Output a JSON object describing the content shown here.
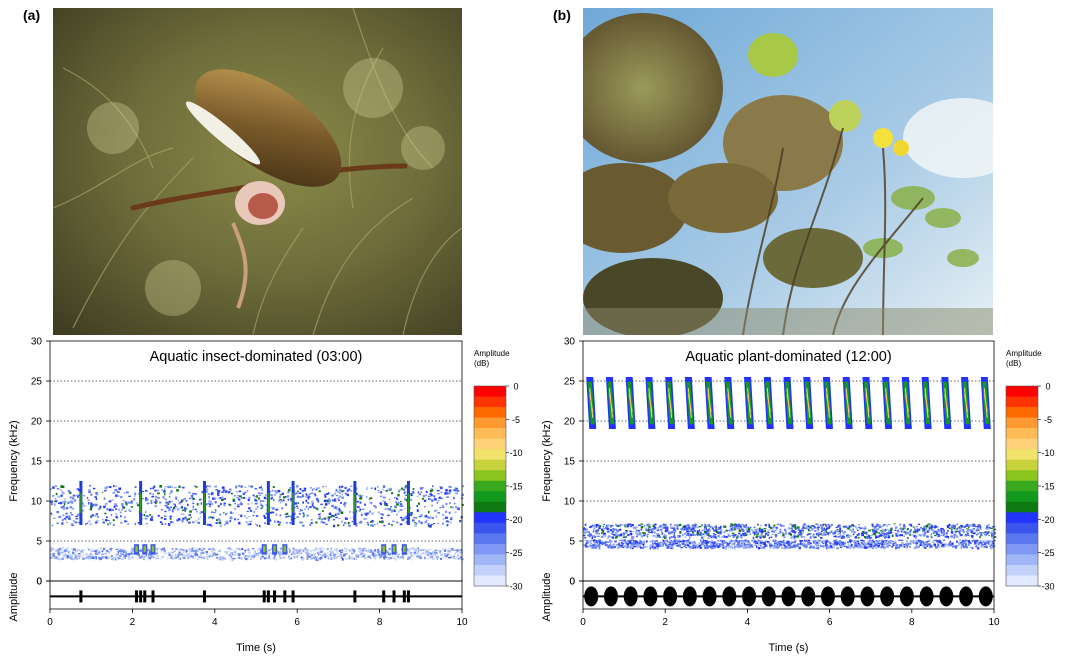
{
  "panels": [
    {
      "letter": "(a)",
      "photo_subject": "water-boatman-insect-photo",
      "chart_title": "Aquatic insect-dominated (03:00)"
    },
    {
      "letter": "(b)",
      "photo_subject": "water-lily-plants-photo",
      "chart_title": "Aquatic plant-dominated (12:00)"
    }
  ],
  "colorbar": {
    "title_line1": "Amplitude",
    "title_line2": "(dB)",
    "ticks": [
      "0",
      "-5",
      "-10",
      "-15",
      "-20",
      "-25",
      "-30"
    ],
    "colors": [
      "#ff0000",
      "#ff3300",
      "#ff6a00",
      "#ff9a33",
      "#ffbb55",
      "#ffd27a",
      "#f0e26a",
      "#c8d23c",
      "#8cc41e",
      "#3aa81e",
      "#139a1e",
      "#0c7a10",
      "#2233ff",
      "#3a55ee",
      "#5b78f0",
      "#7f98f4",
      "#a1b6f7",
      "#c2d0fa",
      "#e0e9fd"
    ]
  },
  "chart_data": [
    {
      "type": "spectrogram",
      "title": "Aquatic insect-dominated (03:00)",
      "xlabel": "Time (s)",
      "ylabel": "Frequency (kHz)",
      "amp_label": "Amplitude",
      "xlim": [
        0,
        10
      ],
      "ylim": [
        0,
        30
      ],
      "xticks": [
        "0",
        "2",
        "4",
        "6",
        "8",
        "10"
      ],
      "yticks": [
        "0",
        "5",
        "10",
        "15",
        "20",
        "25",
        "30"
      ],
      "gridlines_kHz": [
        5,
        15,
        20,
        25
      ],
      "amplitude_range_dB": [
        -30,
        0
      ],
      "bands_kHz": [
        {
          "low": 7,
          "high": 12,
          "level_dB": -22
        },
        {
          "low": 2.8,
          "high": 4.2,
          "level_dB": -26
        }
      ],
      "events_s": [
        0.75,
        2.2,
        3.75,
        5.3,
        5.9,
        7.4,
        8.7
      ],
      "lowfreq_bursts_s": [
        2.1,
        2.3,
        2.5,
        5.2,
        5.45,
        5.7,
        8.1,
        8.35,
        8.6
      ]
    },
    {
      "type": "spectrogram",
      "title": "Aquatic plant-dominated (12:00)",
      "xlabel": "Time (s)",
      "ylabel": "Frequency (kHz)",
      "amp_label": "Amplitude",
      "xlim": [
        0,
        10
      ],
      "ylim": [
        0,
        30
      ],
      "xticks": [
        "0",
        "2",
        "4",
        "6",
        "8",
        "10"
      ],
      "yticks": [
        "0",
        "5",
        "10",
        "15",
        "20",
        "25",
        "30"
      ],
      "gridlines_kHz": [
        10,
        15,
        20,
        25
      ],
      "amplitude_range_dB": [
        -30,
        0
      ],
      "pulse_band_kHz": [
        19,
        25.5
      ],
      "pulse_times_s": [
        0.2,
        0.68,
        1.16,
        1.64,
        2.12,
        2.6,
        3.08,
        3.56,
        4.04,
        4.52,
        5.0,
        5.48,
        5.96,
        6.44,
        6.92,
        7.4,
        7.88,
        8.36,
        8.84,
        9.32,
        9.8
      ],
      "bands_kHz": [
        {
          "low": 5.5,
          "high": 7.2,
          "level_dB": -22
        },
        {
          "low": 4.2,
          "high": 5.2,
          "level_dB": -23
        }
      ]
    }
  ]
}
